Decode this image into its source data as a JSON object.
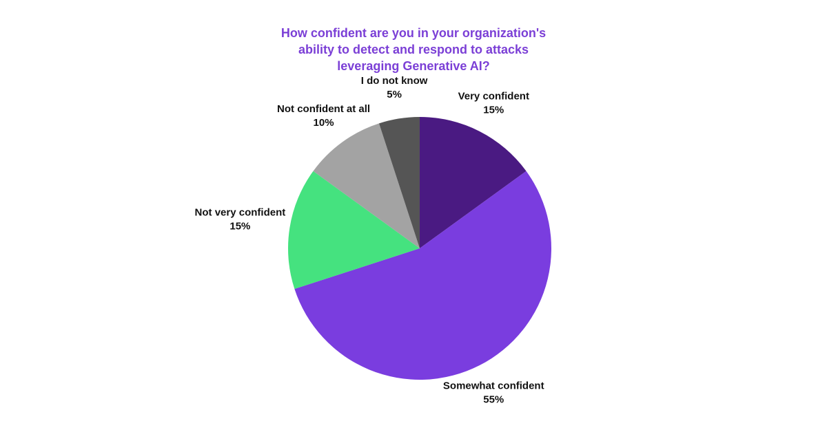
{
  "chart_data": {
    "type": "pie",
    "title": "How confident are you in your organization's ability to detect and respond to attacks leveraging Generative AI?",
    "categories": [
      "Very confident",
      "Somewhat confident",
      "Not very confident",
      "Not confident at all",
      "I do not know"
    ],
    "values": [
      15,
      55,
      15,
      10,
      5
    ],
    "value_labels": [
      "15%",
      "55%",
      "15%",
      "10%",
      "5%"
    ],
    "colors": [
      "#4a1a82",
      "#7a3ddf",
      "#45e27f",
      "#a3a3a3",
      "#555555"
    ]
  }
}
